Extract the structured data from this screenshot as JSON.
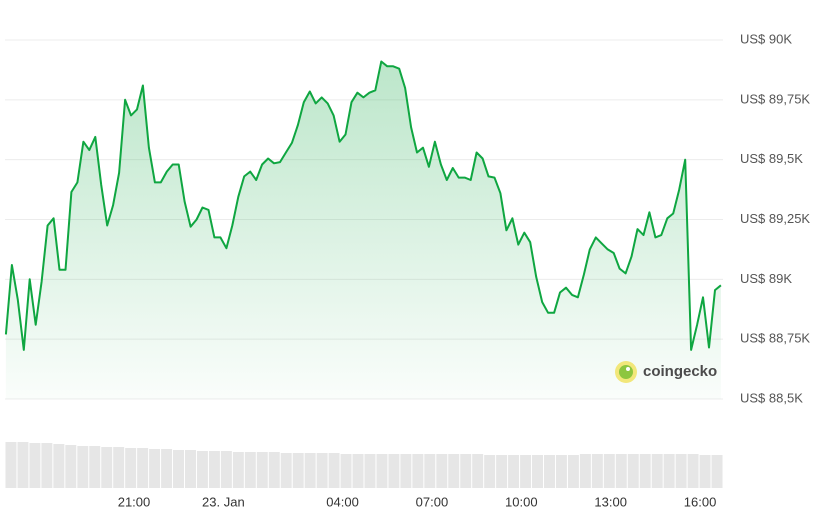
{
  "chart_data": {
    "type": "line",
    "x": [
      16.7,
      16.9,
      17.1,
      17.3,
      17.5,
      17.7,
      17.9,
      18.1,
      18.3,
      18.5,
      18.7,
      18.9,
      19.1,
      19.3,
      19.5,
      19.7,
      19.9,
      20.1,
      20.3,
      20.5,
      20.7,
      20.9,
      21.1,
      21.3,
      21.5,
      21.7,
      21.9,
      22.1,
      22.3,
      22.5,
      22.7,
      22.9,
      23.1,
      23.3,
      23.5,
      23.7,
      23.9,
      24.1,
      24.3,
      24.5,
      24.7,
      24.9,
      25.1,
      25.3,
      25.5,
      25.7,
      25.9,
      26.1,
      26.3,
      26.5,
      26.7,
      26.9,
      27.1,
      27.3,
      27.5,
      27.7,
      27.9,
      28.1,
      28.3,
      28.5,
      28.7,
      28.9,
      29.1,
      29.3,
      29.5,
      29.7,
      29.9,
      30.1,
      30.3,
      30.5,
      30.7,
      30.9,
      31.1,
      31.3,
      31.5,
      31.7,
      31.9,
      32.1,
      32.3,
      32.5,
      32.7,
      32.9,
      33.1,
      33.3,
      33.5,
      33.7,
      33.9,
      34.1,
      34.3,
      34.5,
      34.7,
      34.9,
      35.1,
      35.3,
      35.5,
      35.7,
      35.9,
      36.1,
      36.3,
      36.5,
      36.7,
      36.9,
      37.1,
      37.3,
      37.5,
      37.7,
      37.9,
      38.1,
      38.3,
      38.5,
      38.7,
      38.9,
      39.1,
      39.3,
      39.5,
      39.7,
      39.9,
      40.1,
      40.3,
      40.5,
      40.7
    ],
    "series": [
      {
        "color": "#0fa641",
        "values": [
          88770,
          89060,
          88915,
          88705,
          89000,
          88810,
          88990,
          89225,
          89255,
          89040,
          89040,
          89365,
          89405,
          89575,
          89540,
          89595,
          89395,
          89225,
          89310,
          89445,
          89750,
          89685,
          89710,
          89810,
          89550,
          89405,
          89405,
          89450,
          89480,
          89480,
          89325,
          89220,
          89250,
          89300,
          89290,
          89175,
          89175,
          89130,
          89225,
          89345,
          89430,
          89450,
          89415,
          89480,
          89505,
          89485,
          89490,
          89530,
          89570,
          89645,
          89740,
          89785,
          89735,
          89760,
          89735,
          89685,
          89575,
          89605,
          89740,
          89780,
          89760,
          89780,
          89790,
          89910,
          89890,
          89890,
          89880,
          89800,
          89635,
          89530,
          89550,
          89470,
          89575,
          89480,
          89415,
          89465,
          89425,
          89425,
          89415,
          89530,
          89505,
          89430,
          89425,
          89360,
          89205,
          89255,
          89145,
          89195,
          89155,
          89010,
          88905,
          88860,
          88860,
          88945,
          88965,
          88935,
          88925,
          89020,
          89125,
          89175,
          89150,
          89125,
          89110,
          89045,
          89025,
          89095,
          89210,
          89185,
          89280,
          89175,
          89185,
          89255,
          89275,
          89375,
          89500,
          88705,
          88810,
          88925,
          88715,
          88955,
          88975
        ]
      }
    ],
    "xlim": [
      16.67,
      40.77
    ],
    "xticks": [
      {
        "value": 21,
        "label": "21:00"
      },
      {
        "value": 24,
        "label": "23. Jan"
      },
      {
        "value": 28,
        "label": "04:00"
      },
      {
        "value": 31,
        "label": "07:00"
      },
      {
        "value": 34,
        "label": "10:00"
      },
      {
        "value": 37,
        "label": "13:00"
      },
      {
        "value": 40,
        "label": "16:00"
      }
    ],
    "ylim": [
      88500,
      90000
    ],
    "yticks": [
      {
        "value": 88500,
        "label": "US$ 88,5K"
      },
      {
        "value": 88750,
        "label": "US$ 88,75K"
      },
      {
        "value": 89000,
        "label": "US$ 89K"
      },
      {
        "value": 89250,
        "label": "US$ 89,25K"
      },
      {
        "value": 89500,
        "label": "US$ 89,5K"
      },
      {
        "value": 89750,
        "label": "US$ 89,75K"
      },
      {
        "value": 90000,
        "label": "US$ 90K"
      }
    ],
    "grid": true,
    "volume": {
      "color": "#e6e6e6",
      "values": [
        46,
        46,
        45,
        45,
        44,
        43,
        42,
        42,
        41,
        41,
        40,
        40,
        39,
        39,
        38,
        38,
        37,
        37,
        37,
        36,
        36,
        36,
        36,
        35,
        35,
        35,
        35,
        35,
        34,
        34,
        34,
        34,
        34,
        34,
        34,
        34,
        34,
        34,
        34,
        34,
        33,
        33,
        33,
        33,
        33,
        33,
        33,
        33,
        34,
        34,
        34,
        34,
        34,
        34,
        34,
        34,
        34,
        34,
        33,
        33
      ]
    },
    "watermark": "coingecko"
  }
}
